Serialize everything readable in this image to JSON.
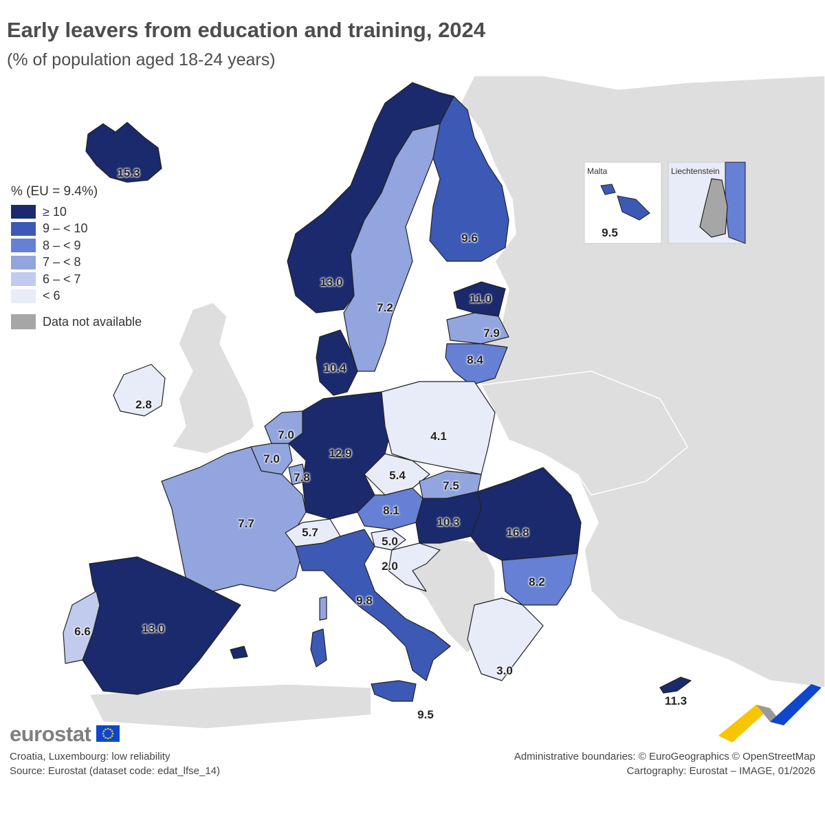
{
  "title": "Early leavers from education and training, 2024",
  "subtitle": "(% of population aged 18-24 years)",
  "legend": {
    "title": "% (EU = 9.4%)",
    "classes": [
      {
        "label": "≥ 10",
        "color": "#1a2a6c"
      },
      {
        "label": "9 – < 10",
        "color": "#3c59b5"
      },
      {
        "label": "8 – < 9",
        "color": "#6580d4"
      },
      {
        "label": "7 – < 8",
        "color": "#92a5de"
      },
      {
        "label": "6 – < 7",
        "color": "#c0cbee"
      },
      {
        "label": "< 6",
        "color": "#e8ebf8"
      }
    ],
    "not_available": {
      "label": "Data not available",
      "color": "#a6a6a6"
    }
  },
  "colors": {
    "non_eu": "#dedede",
    "sea": "#ffffff",
    "border": "#222222"
  },
  "countries": [
    {
      "name": "iceland",
      "value": "15.3"
    },
    {
      "name": "norway",
      "value": "13.0"
    },
    {
      "name": "sweden",
      "value": "7.2"
    },
    {
      "name": "finland",
      "value": "9.6"
    },
    {
      "name": "estonia",
      "value": "11.0"
    },
    {
      "name": "latvia",
      "value": "7.9"
    },
    {
      "name": "lithuania",
      "value": "8.4"
    },
    {
      "name": "denmark",
      "value": "10.4"
    },
    {
      "name": "ireland",
      "value": "2.8"
    },
    {
      "name": "netherlands",
      "value": "7.0"
    },
    {
      "name": "belgium",
      "value": "7.0"
    },
    {
      "name": "luxembourg",
      "value": "7.8"
    },
    {
      "name": "germany",
      "value": "12.9"
    },
    {
      "name": "poland",
      "value": "4.1"
    },
    {
      "name": "czechia",
      "value": "5.4"
    },
    {
      "name": "slovakia",
      "value": "7.5"
    },
    {
      "name": "austria",
      "value": "8.1"
    },
    {
      "name": "hungary",
      "value": "10.3"
    },
    {
      "name": "romania",
      "value": "16.8"
    },
    {
      "name": "france",
      "value": "7.7"
    },
    {
      "name": "switzerland",
      "value": "5.7"
    },
    {
      "name": "slovenia",
      "value": "5.0"
    },
    {
      "name": "croatia",
      "value": "2.0"
    },
    {
      "name": "italy",
      "value": "9.8"
    },
    {
      "name": "bulgaria",
      "value": "8.2"
    },
    {
      "name": "spain",
      "value": "13.0"
    },
    {
      "name": "portugal",
      "value": "6.6"
    },
    {
      "name": "greece",
      "value": "3.0"
    },
    {
      "name": "cyprus",
      "value": "11.3"
    },
    {
      "name": "sicily",
      "value": "9.5"
    }
  ],
  "insets": {
    "malta": {
      "label": "Malta",
      "value": "9.5"
    },
    "liechtenstein": {
      "label": "Liechtenstein"
    }
  },
  "brand": "eurostat",
  "footer": {
    "note": "Croatia, Luxembourg: low reliability",
    "source": "Source: Eurostat (dataset code: edat_lfse_14)",
    "boundaries": "Administrative boundaries: © EuroGeographics © OpenStreetMap",
    "cartography": "Cartography: Eurostat – IMAGE, 01/2026"
  }
}
